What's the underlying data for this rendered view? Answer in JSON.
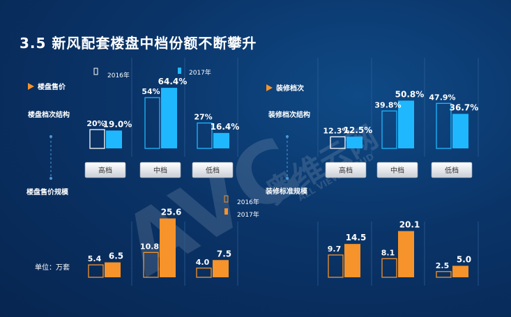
{
  "title": "3.5 新风配套楼盘中档份额不断攀升",
  "legend_top": {
    "y2016": "2016年",
    "y2017": "2017年"
  },
  "legend_bottom": {
    "y2016": "2016年",
    "y2017": "2017年"
  },
  "left_labels": {
    "header": "楼盘售价",
    "structure": "楼盘档次结构",
    "scale": "楼盘售价规模"
  },
  "right_labels": {
    "header": "装修档次",
    "structure": "装修档次结构",
    "scale": "装修标准规模"
  },
  "unit": "单位：万套",
  "watermark": {
    "cn": "奥维云网",
    "en": "ALL VIEW CLOUD",
    "logo": "AVC"
  },
  "chart_data": [
    {
      "type": "bar",
      "title": "楼盘档次结构",
      "categories": [
        "高档",
        "中档",
        "低档"
      ],
      "series": [
        {
          "name": "2016年",
          "values": [
            20,
            54,
            27
          ],
          "labels": [
            "20%",
            "54%",
            "27%"
          ]
        },
        {
          "name": "2017年",
          "values": [
            19.0,
            64.4,
            16.4
          ],
          "labels": [
            "19.0%",
            "64.4%",
            "16.4%"
          ]
        }
      ],
      "ylim": [
        0,
        75
      ]
    },
    {
      "type": "bar",
      "title": "装修档次结构",
      "categories": [
        "高档",
        "中档",
        "低档"
      ],
      "series": [
        {
          "name": "2016年",
          "values": [
            12.3,
            39.8,
            47.9
          ],
          "labels": [
            "12.3%",
            "39.8%",
            "47.9%"
          ]
        },
        {
          "name": "2017年",
          "values": [
            12.5,
            50.8,
            36.7
          ],
          "labels": [
            "12.5%",
            "50.8%",
            "36.7%"
          ]
        }
      ],
      "ylim": [
        0,
        75
      ]
    },
    {
      "type": "bar",
      "title": "楼盘售价规模",
      "unit": "万套",
      "categories": [
        "高档",
        "中档",
        "低档"
      ],
      "series": [
        {
          "name": "2016年",
          "values": [
            5.4,
            10.8,
            4.0
          ],
          "labels": [
            "5.4",
            "10.8",
            "4.0"
          ]
        },
        {
          "name": "2017年",
          "values": [
            6.5,
            25.6,
            7.5
          ],
          "labels": [
            "6.5",
            "25.6",
            "7.5"
          ]
        }
      ],
      "ylim": [
        0,
        30
      ]
    },
    {
      "type": "bar",
      "title": "装修标准规模",
      "unit": "万套",
      "categories": [
        "高档",
        "中档",
        "低档"
      ],
      "series": [
        {
          "name": "2016年",
          "values": [
            9.7,
            8.1,
            2.5
          ],
          "labels": [
            "9.7",
            "8.1",
            "2.5"
          ]
        },
        {
          "name": "2017年",
          "values": [
            14.5,
            20.1,
            5.0
          ],
          "labels": [
            "14.5",
            "20.1",
            "5.0"
          ]
        }
      ],
      "ylim": [
        0,
        30
      ]
    }
  ],
  "colors": {
    "blue": "#1fb8ff",
    "blue_dark": "#0e8fe0",
    "orange": "#f6932a",
    "outline": "#ffffff"
  }
}
